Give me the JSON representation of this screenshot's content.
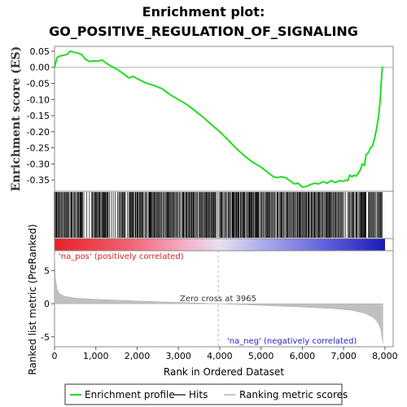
{
  "chart_data": {
    "type": "line",
    "title_line1": "Enrichment plot:",
    "title_line2": "GO_POSITIVE_REGULATION_OF_SIGNALING",
    "es_ylabel": "Enrichment score (ES)",
    "rank_ylabel": "Ranked list metric (PreRanked)",
    "xlabel": "Rank in Ordered Dataset",
    "xlim": [
      0,
      8200
    ],
    "x_ticks": [
      0,
      1000,
      2000,
      3000,
      4000,
      5000,
      6000,
      7000,
      8000
    ],
    "x_tick_labels": [
      "0",
      "1,000",
      "2,000",
      "3,000",
      "4,000",
      "5,000",
      "6,000",
      "7,000",
      "8,000"
    ],
    "es_ylim": [
      -0.385,
      0.065
    ],
    "es_ticks": [
      0.05,
      0.0,
      -0.05,
      -0.1,
      -0.15,
      -0.2,
      -0.25,
      -0.3,
      -0.35
    ],
    "es_tick_labels": [
      "0.05",
      "0.00",
      "-0.05",
      "-0.10",
      "-0.15",
      "-0.20",
      "-0.25",
      "-0.30",
      "-0.35"
    ],
    "es_curve": {
      "x": [
        0,
        60,
        120,
        200,
        300,
        380,
        450,
        550,
        650,
        750,
        850,
        950,
        1050,
        1150,
        1250,
        1350,
        1500,
        1650,
        1800,
        1900,
        2000,
        2200,
        2400,
        2600,
        2800,
        3000,
        3200,
        3400,
        3600,
        3800,
        4000,
        4200,
        4400,
        4600,
        4800,
        5000,
        5150,
        5300,
        5400,
        5500,
        5600,
        5700,
        5800,
        5900,
        6000,
        6100,
        6200,
        6300,
        6400,
        6500,
        6600,
        6700,
        6800,
        6900,
        7000,
        7050,
        7100,
        7150,
        7200,
        7250,
        7300,
        7350,
        7400,
        7450,
        7500,
        7550,
        7600,
        7650,
        7700,
        7750,
        7800,
        7850,
        7880,
        7900,
        7920,
        7940
      ],
      "y": [
        0.0,
        0.03,
        0.035,
        0.037,
        0.04,
        0.05,
        0.047,
        0.045,
        0.04,
        0.025,
        0.018,
        0.02,
        0.019,
        0.023,
        0.013,
        0.005,
        -0.005,
        -0.018,
        -0.033,
        -0.028,
        -0.035,
        -0.048,
        -0.056,
        -0.066,
        -0.085,
        -0.1,
        -0.115,
        -0.135,
        -0.155,
        -0.178,
        -0.2,
        -0.225,
        -0.252,
        -0.275,
        -0.295,
        -0.31,
        -0.325,
        -0.34,
        -0.342,
        -0.34,
        -0.343,
        -0.352,
        -0.362,
        -0.36,
        -0.372,
        -0.37,
        -0.364,
        -0.36,
        -0.362,
        -0.355,
        -0.36,
        -0.352,
        -0.358,
        -0.352,
        -0.354,
        -0.35,
        -0.352,
        -0.335,
        -0.34,
        -0.335,
        -0.338,
        -0.33,
        -0.32,
        -0.3,
        -0.305,
        -0.27,
        -0.265,
        -0.25,
        -0.245,
        -0.22,
        -0.19,
        -0.15,
        -0.11,
        -0.07,
        -0.03,
        0.003
      ]
    },
    "hits": {
      "dense_regions": [
        [
          0,
          700
        ],
        [
          900,
          1320
        ],
        [
          1560,
          1700
        ],
        [
          1800,
          3900
        ],
        [
          4000,
          6000
        ],
        [
          6000,
          7000
        ],
        [
          7100,
          7550
        ],
        [
          7600,
          7950
        ]
      ],
      "sparse_regions": [
        [
          700,
          900
        ],
        [
          1320,
          1560
        ],
        [
          1700,
          1800
        ],
        [
          3900,
          4000
        ],
        [
          7000,
          7100
        ]
      ]
    },
    "rank_ylim": [
      -6.5,
      8.0
    ],
    "rank_ticks": [
      5,
      0,
      -5
    ],
    "rank_tick_labels": [
      "5",
      "0",
      "-5"
    ],
    "zero_cross_rank": 3965,
    "zero_cross_label": "Zero cross at 3965",
    "pos_label": "'na_pos' (positively correlated)",
    "neg_label": "'na_neg' (negatively correlated)",
    "n_ranks": 7950,
    "metric_profile": {
      "x": [
        0,
        20,
        60,
        120,
        250,
        500,
        1000,
        2000,
        3000,
        3965,
        5000,
        6000,
        6800,
        7200,
        7500,
        7700,
        7800,
        7870,
        7910,
        7940,
        7950
      ],
      "y": [
        7.5,
        4.0,
        2.2,
        1.5,
        1.1,
        0.85,
        0.65,
        0.4,
        0.2,
        0.0,
        -0.25,
        -0.5,
        -0.75,
        -1.0,
        -1.4,
        -2.0,
        -2.6,
        -3.3,
        -4.2,
        -5.5,
        -6.0
      ]
    },
    "legend": [
      "Enrichment profile",
      "Hits",
      "Ranking metric scores"
    ],
    "colors": {
      "es_line": "#22dd22",
      "hit_line": "#000000",
      "metric_fill": "#c0c0c0",
      "pos_text": "#dd2222",
      "neg_text": "#2222cc",
      "zero_line": "#b0b0b0"
    }
  }
}
